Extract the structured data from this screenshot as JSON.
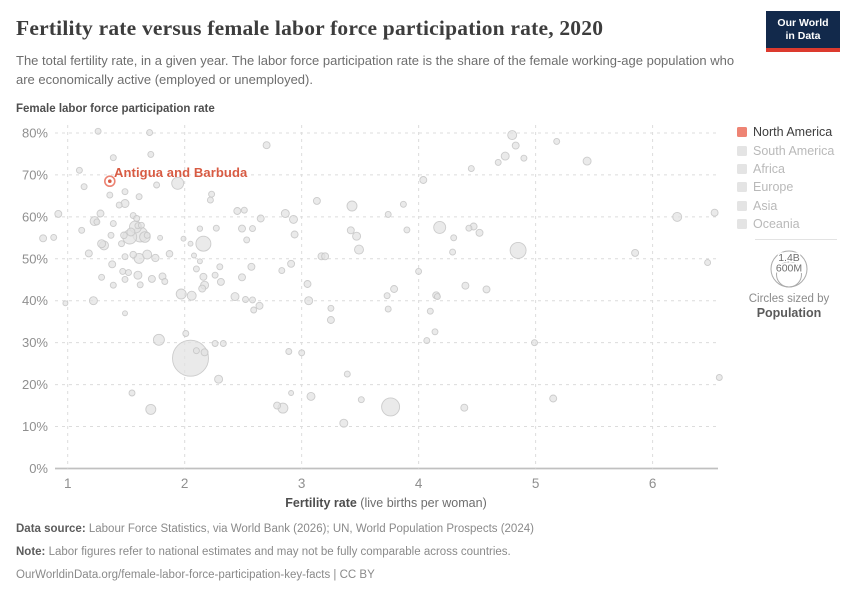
{
  "header": {
    "title": "Fertility rate versus female labor force participation rate, 2020",
    "subtitle": "The total fertility rate, in a given year. The labor force participation rate is the share of the female working-age population who are economically active (employed or unemployed).",
    "logo_line1": "Our World",
    "logo_line2": "in Data"
  },
  "colors": {
    "accent": "#d85b43",
    "accent_ring": "#ec8373",
    "legend_active_swatch": "#ee8474",
    "legend_inactive_swatch": "#e4e4e4",
    "legend_active_text": "#3d3d3d",
    "legend_inactive_text": "#b9b9b9",
    "dot_fill": "#e2e2e2",
    "dot_stroke": "#c4c4c4",
    "grid": "#dcdcdc",
    "axis_line": "#c0c0c0",
    "tick_text": "#8f8f8f",
    "xlabel_bold": "#4e4e4e",
    "xlabel_rest": "#6e6e6e",
    "logo_navy": "#12294b",
    "logo_red": "#dc3a2e"
  },
  "legend": {
    "items": [
      {
        "label": "North America",
        "active": true
      },
      {
        "label": "South America",
        "active": false
      },
      {
        "label": "Africa",
        "active": false
      },
      {
        "label": "Europe",
        "active": false
      },
      {
        "label": "Asia",
        "active": false
      },
      {
        "label": "Oceania",
        "active": false
      }
    ],
    "size_legend": {
      "big_label": "1.4B",
      "small_label": "600M",
      "caption_line1": "Circles sized by",
      "caption_line2": "Population"
    }
  },
  "footer": {
    "source_label": "Data source:",
    "source_text": " Labour Force Statistics, via World Bank (2026); UN, World Population Prospects (2024)",
    "note_label": "Note:",
    "note_text": " Labor figures refer to national estimates and may not be fully comparable across countries.",
    "url_line": "OurWorldinData.org/female-labor-force-participation-key-facts | CC BY"
  },
  "chart_data": {
    "type": "scatter",
    "title": "Fertility rate versus female labor force participation rate, 2020",
    "y_axis_title": "Female labor force participation rate",
    "xlabel_bold": "Fertility rate",
    "xlabel_rest": " (live births per woman)",
    "x_ticks": [
      1,
      2,
      3,
      4,
      5,
      6
    ],
    "y_ticks": [
      0,
      10,
      20,
      30,
      40,
      50,
      60,
      70,
      80
    ],
    "y_tick_suffix": "%",
    "x_range": [
      0.76,
      6.58
    ],
    "y_range": [
      0,
      82
    ],
    "grid": "dashed",
    "legend_position": "right",
    "sized_by": "Population",
    "highlight": {
      "label": "Antigua and Barbuda",
      "x": 1.36,
      "y": 68.5
    },
    "points_format": [
      "fertility_rate",
      "female_lfp_pct",
      "radius_px"
    ],
    "points": [
      [
        0.79,
        54.9,
        3.5
      ],
      [
        0.88,
        55.1,
        3
      ],
      [
        0.92,
        60.7,
        3.5
      ],
      [
        0.98,
        39.4,
        2.5
      ],
      [
        1.1,
        71.1,
        3
      ],
      [
        1.12,
        56.8,
        3
      ],
      [
        1.14,
        67.2,
        3
      ],
      [
        1.18,
        51.3,
        3.5
      ],
      [
        1.22,
        40.0,
        4
      ],
      [
        1.23,
        59.0,
        4.5
      ],
      [
        1.25,
        58.8,
        3
      ],
      [
        1.26,
        80.4,
        3
      ],
      [
        1.28,
        60.8,
        3.5
      ],
      [
        1.29,
        53.6,
        4
      ],
      [
        1.29,
        45.6,
        3
      ],
      [
        1.31,
        53.2,
        4.5
      ],
      [
        1.36,
        65.2,
        3
      ],
      [
        1.37,
        55.6,
        3
      ],
      [
        1.38,
        48.7,
        3.5
      ],
      [
        1.39,
        74.1,
        3
      ],
      [
        1.39,
        58.4,
        3
      ],
      [
        1.39,
        43.7,
        3
      ],
      [
        1.44,
        62.8,
        3
      ],
      [
        1.46,
        53.6,
        3
      ],
      [
        1.47,
        47.0,
        3
      ],
      [
        1.48,
        55.6,
        3.3
      ],
      [
        1.49,
        66.0,
        3
      ],
      [
        1.49,
        63.2,
        4
      ],
      [
        1.49,
        50.5,
        3
      ],
      [
        1.49,
        45.1,
        3
      ],
      [
        1.49,
        37.0,
        2.5
      ],
      [
        1.52,
        46.7,
        3
      ],
      [
        1.53,
        55.2,
        7
      ],
      [
        1.54,
        56.4,
        4
      ],
      [
        1.55,
        18.0,
        3
      ],
      [
        1.56,
        60.3,
        3
      ],
      [
        1.56,
        51.0,
        3.3
      ],
      [
        1.58,
        57.6,
        6
      ],
      [
        1.59,
        59.6,
        3
      ],
      [
        1.6,
        46.1,
        4
      ],
      [
        1.6,
        57.9,
        3
      ],
      [
        1.61,
        64.8,
        3
      ],
      [
        1.61,
        50.1,
        5
      ],
      [
        1.62,
        55.8,
        7.5
      ],
      [
        1.62,
        43.8,
        3
      ],
      [
        1.63,
        58.0,
        3
      ],
      [
        1.66,
        55.2,
        5.3
      ],
      [
        1.68,
        55.6,
        3
      ],
      [
        1.68,
        51.0,
        4.5
      ],
      [
        1.7,
        80.1,
        3
      ],
      [
        1.71,
        74.9,
        3
      ],
      [
        1.71,
        14.1,
        5
      ],
      [
        1.72,
        45.2,
        3.5
      ],
      [
        1.75,
        50.2,
        3.7
      ],
      [
        1.76,
        67.6,
        3
      ],
      [
        1.78,
        30.7,
        5.5
      ],
      [
        1.79,
        55.0,
        2.5
      ],
      [
        1.81,
        45.8,
        3.5
      ],
      [
        1.83,
        44.6,
        3
      ],
      [
        1.87,
        51.2,
        3.3
      ],
      [
        1.94,
        68.0,
        6
      ],
      [
        1.97,
        41.6,
        5
      ],
      [
        1.99,
        54.8,
        2.5
      ],
      [
        2.01,
        32.2,
        3
      ],
      [
        2.05,
        53.6,
        2.5
      ],
      [
        2.05,
        26.3,
        18
      ],
      [
        2.06,
        41.2,
        4.5
      ],
      [
        2.08,
        50.8,
        2.5
      ],
      [
        2.1,
        47.6,
        3
      ],
      [
        2.1,
        28.1,
        3
      ],
      [
        2.13,
        57.2,
        2.7
      ],
      [
        2.13,
        49.4,
        2.5
      ],
      [
        2.15,
        42.9,
        3.5
      ],
      [
        2.16,
        45.7,
        3.5
      ],
      [
        2.16,
        53.6,
        7.5
      ],
      [
        2.17,
        43.7,
        4
      ],
      [
        2.17,
        27.7,
        3.5
      ],
      [
        2.22,
        64.0,
        3
      ],
      [
        2.23,
        65.4,
        3
      ],
      [
        2.26,
        46.1,
        3
      ],
      [
        2.26,
        29.8,
        3
      ],
      [
        2.27,
        57.3,
        3
      ],
      [
        2.29,
        21.3,
        4
      ],
      [
        2.3,
        48.1,
        3
      ],
      [
        2.31,
        44.5,
        3.5
      ],
      [
        2.33,
        29.8,
        3
      ],
      [
        2.43,
        41.0,
        4
      ],
      [
        2.45,
        61.4,
        3.5
      ],
      [
        2.49,
        57.2,
        3.5
      ],
      [
        2.49,
        45.6,
        3.5
      ],
      [
        2.51,
        61.6,
        3
      ],
      [
        2.52,
        40.3,
        3
      ],
      [
        2.53,
        54.5,
        3
      ],
      [
        2.57,
        48.1,
        3.5
      ],
      [
        2.58,
        57.2,
        3
      ],
      [
        2.58,
        40.2,
        3
      ],
      [
        2.59,
        37.8,
        3
      ],
      [
        2.64,
        38.8,
        3.5
      ],
      [
        2.65,
        59.6,
        3.5
      ],
      [
        2.7,
        77.1,
        3.5
      ],
      [
        2.79,
        15.0,
        3.5
      ],
      [
        2.83,
        47.2,
        3
      ],
      [
        2.84,
        14.4,
        5
      ],
      [
        2.86,
        60.8,
        4
      ],
      [
        2.89,
        27.9,
        3
      ],
      [
        2.91,
        48.8,
        3.5
      ],
      [
        2.91,
        18.0,
        2.5
      ],
      [
        2.93,
        59.4,
        4
      ],
      [
        2.94,
        55.8,
        3.5
      ],
      [
        3.0,
        27.6,
        3
      ],
      [
        3.05,
        44.0,
        3.5
      ],
      [
        3.06,
        40.0,
        4
      ],
      [
        3.08,
        17.2,
        4
      ],
      [
        3.13,
        63.8,
        3.5
      ],
      [
        3.17,
        50.6,
        3.5
      ],
      [
        3.2,
        50.6,
        3.5
      ],
      [
        3.25,
        38.2,
        3
      ],
      [
        3.25,
        35.4,
        3.5
      ],
      [
        3.36,
        10.8,
        4
      ],
      [
        3.39,
        22.5,
        3
      ],
      [
        3.42,
        56.8,
        3.5
      ],
      [
        3.43,
        62.6,
        5
      ],
      [
        3.47,
        55.4,
        4
      ],
      [
        3.49,
        52.2,
        4.5
      ],
      [
        3.51,
        16.4,
        3
      ],
      [
        3.73,
        41.2,
        3
      ],
      [
        3.74,
        60.6,
        3
      ],
      [
        3.74,
        38.0,
        3
      ],
      [
        3.76,
        14.7,
        9
      ],
      [
        3.79,
        42.8,
        3.5
      ],
      [
        3.87,
        63.0,
        3
      ],
      [
        3.9,
        56.9,
        3
      ],
      [
        4.0,
        47.0,
        3
      ],
      [
        4.04,
        68.8,
        3.5
      ],
      [
        4.07,
        30.5,
        3
      ],
      [
        4.1,
        37.5,
        3
      ],
      [
        4.14,
        32.6,
        3
      ],
      [
        4.15,
        41.3,
        3.5
      ],
      [
        4.16,
        41.0,
        3
      ],
      [
        4.18,
        57.5,
        6
      ],
      [
        4.29,
        51.6,
        3
      ],
      [
        4.3,
        55.0,
        3
      ],
      [
        4.39,
        14.5,
        3.5
      ],
      [
        4.4,
        43.6,
        3.5
      ],
      [
        4.43,
        57.3,
        3
      ],
      [
        4.45,
        71.5,
        3
      ],
      [
        4.47,
        57.7,
        3.5
      ],
      [
        4.52,
        56.2,
        3.5
      ],
      [
        4.58,
        42.7,
        3.5
      ],
      [
        4.68,
        73.0,
        3
      ],
      [
        4.74,
        74.5,
        4
      ],
      [
        4.8,
        79.5,
        4.5
      ],
      [
        4.83,
        77.0,
        3.5
      ],
      [
        4.85,
        52.0,
        8
      ],
      [
        4.9,
        74.0,
        3
      ],
      [
        4.99,
        30.0,
        3
      ],
      [
        5.15,
        16.7,
        3.5
      ],
      [
        5.18,
        78.0,
        3
      ],
      [
        5.44,
        73.3,
        4
      ],
      [
        5.85,
        51.4,
        3.5
      ],
      [
        6.21,
        60.0,
        4.5
      ],
      [
        6.47,
        49.1,
        3
      ],
      [
        6.53,
        61.0,
        3.5
      ],
      [
        6.57,
        21.7,
        3
      ]
    ]
  }
}
